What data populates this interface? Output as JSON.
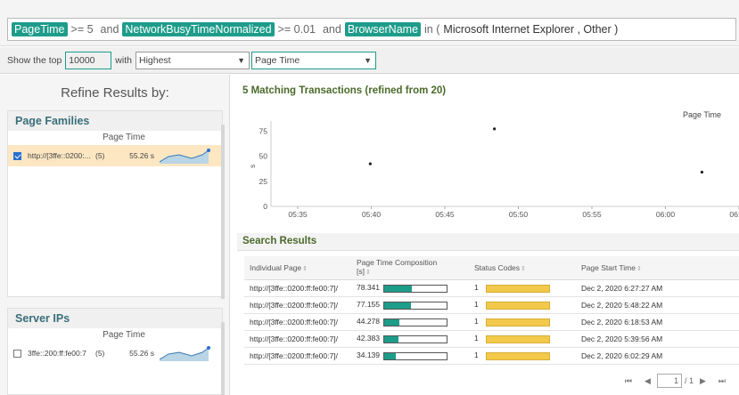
{
  "query": {
    "tag1": "PageTime",
    "op1": ">= 5",
    "and1": "and",
    "tag2": "NetworkBusyTimeNormalized",
    "op2": ">= 0.01",
    "and2": "and",
    "tag3": "BrowserName",
    "in_kw": "in (",
    "values": "Microsoft Internet Explorer , Other )"
  },
  "topn": {
    "prefix": "Show the top",
    "value": "10000",
    "with": "with",
    "order": "Highest",
    "metric": "Page Time"
  },
  "refine": {
    "title": "Refine Results by:",
    "page_families": {
      "heading": "Page Families",
      "col": "Page Time",
      "rows": [
        {
          "url": "http://[3ffe::0200:...",
          "count": "(5)",
          "value": "55.26 s",
          "checked": true
        }
      ]
    },
    "server_ips": {
      "heading": "Server IPs",
      "col": "Page Time",
      "rows": [
        {
          "url": "3ffe::200:ff:fe00:7",
          "count": "(5)",
          "value": "55.26 s",
          "checked": false
        }
      ]
    }
  },
  "chart_data": {
    "type": "scatter",
    "title": "5 Matching Transactions (refined from 20)",
    "legend": "Page Time",
    "ylabel": "s",
    "ylim": [
      0,
      85
    ],
    "yticks": [
      "0",
      "25",
      "50",
      "75"
    ],
    "xticks": [
      "05:35",
      "05:40",
      "05:45",
      "05:50",
      "05:55",
      "06:00",
      "06:05"
    ],
    "x_minutes": [
      5.67,
      11.9,
      39.2,
      54.3
    ],
    "points": [
      {
        "x": "05:39:56",
        "y": 42.383
      },
      {
        "x": "05:48:22",
        "y": 77.155
      },
      {
        "x": "06:02:29",
        "y": 34.139
      }
    ]
  },
  "results": {
    "heading": "Search Results",
    "columns": {
      "page": "Individual Page",
      "comp": "Page Time Composition",
      "comp_unit": "[s]",
      "status": "Status Codes",
      "start": "Page Start Time"
    },
    "rows": [
      {
        "page": "http://[3ffe::0200:ff:fe00:7]/",
        "time": "78.341",
        "fill": 0.44,
        "status": "1",
        "start": "Dec 2, 2020 6:27:27 AM"
      },
      {
        "page": "http://[3ffe::0200:ff:fe00:7]/",
        "time": "77.155",
        "fill": 0.43,
        "status": "1",
        "start": "Dec 2, 2020 5:48:22 AM"
      },
      {
        "page": "http://[3ffe::0200:ff:fe00:7]/",
        "time": "44.278",
        "fill": 0.24,
        "status": "1",
        "start": "Dec 2, 2020 6:18:53 AM"
      },
      {
        "page": "http://[3ffe::0200:ff:fe00:7]/",
        "time": "42.383",
        "fill": 0.23,
        "status": "1",
        "start": "Dec 2, 2020 5:39:56 AM"
      },
      {
        "page": "http://[3ffe::0200:ff:fe00:7]/",
        "time": "34.139",
        "fill": 0.18,
        "status": "1",
        "start": "Dec 2, 2020 6:02:29 AM"
      }
    ],
    "pager": {
      "current": "1",
      "total": "/ 1"
    }
  },
  "colors": {
    "accent": "#1e9c8a",
    "status": "#f3c94b",
    "selected_row": "#fde7c3"
  }
}
